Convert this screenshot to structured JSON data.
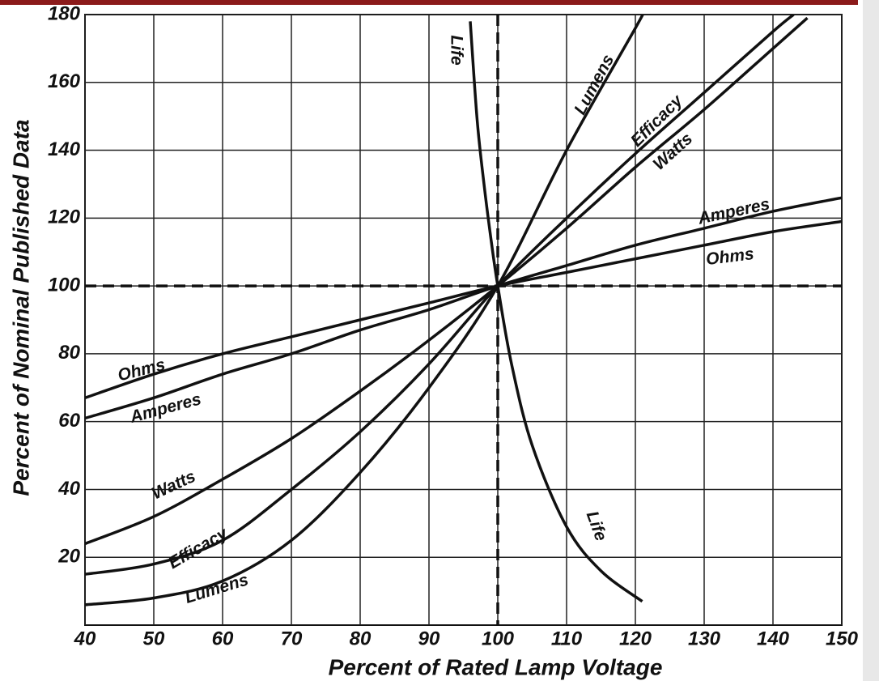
{
  "chart_data": {
    "type": "line",
    "xlabel": "Percent of Rated Lamp Voltage",
    "ylabel": "Percent of Nominal Published Data",
    "xlim": [
      40,
      150
    ],
    "ylim": [
      0,
      180
    ],
    "xticks": [
      40,
      50,
      60,
      70,
      80,
      90,
      100,
      110,
      120,
      130,
      140,
      150
    ],
    "yticks": [
      20,
      40,
      60,
      80,
      100,
      120,
      140,
      160,
      180
    ],
    "grid": true,
    "reference_x": 100,
    "reference_y": 100,
    "series": [
      {
        "name": "Life",
        "color": "#111111",
        "x": [
          96,
          97,
          98,
          99,
          100,
          102,
          105,
          110,
          115,
          121
        ],
        "values": [
          178,
          149,
          130,
          114,
          100,
          77,
          53,
          29,
          16,
          7
        ]
      },
      {
        "name": "Lumens",
        "color": "#111111",
        "x": [
          40,
          50,
          60,
          70,
          80,
          90,
          100,
          110,
          120,
          121
        ],
        "values": [
          6,
          8,
          13,
          25,
          45,
          70,
          100,
          140,
          176,
          180
        ]
      },
      {
        "name": "Efficacy",
        "color": "#111111",
        "x": [
          40,
          50,
          60,
          70,
          80,
          90,
          100,
          110,
          120,
          130,
          140,
          143
        ],
        "values": [
          15,
          18,
          25,
          40,
          57,
          77,
          100,
          120,
          139,
          157,
          175,
          180
        ]
      },
      {
        "name": "Watts",
        "color": "#111111",
        "x": [
          40,
          50,
          60,
          70,
          80,
          90,
          100,
          110,
          120,
          130,
          140,
          145
        ],
        "values": [
          24,
          32,
          43,
          55,
          69,
          84,
          100,
          117,
          135,
          152,
          170,
          179
        ]
      },
      {
        "name": "Amperes",
        "color": "#111111",
        "x": [
          40,
          50,
          60,
          70,
          80,
          90,
          100,
          110,
          120,
          130,
          140,
          150
        ],
        "values": [
          61,
          67,
          74,
          80,
          87,
          93,
          100,
          106,
          112,
          117,
          122,
          126
        ]
      },
      {
        "name": "Ohms",
        "color": "#111111",
        "x": [
          40,
          50,
          60,
          70,
          80,
          90,
          100,
          110,
          120,
          130,
          140,
          150
        ],
        "values": [
          67,
          74,
          80,
          85,
          90,
          95,
          100,
          104,
          108,
          112,
          116,
          119
        ]
      }
    ]
  }
}
